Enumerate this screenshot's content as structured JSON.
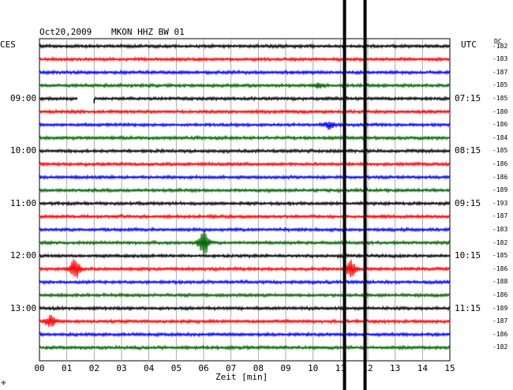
{
  "header": {
    "date": "Oct20,2009",
    "station": "MKON HHZ BW 01",
    "left_zone": "CES",
    "right_zone": "UTC",
    "dc_label": "DC"
  },
  "chart_data": {
    "type": "line",
    "title": "Oct20,2009   MKON HHZ BW 01",
    "xlabel": "Zeit [min]",
    "xlim": [
      0,
      15
    ],
    "x_ticks": [
      "00",
      "01",
      "02",
      "03",
      "04",
      "05",
      "06",
      "07",
      "08",
      "09",
      "10",
      "11",
      "12",
      "13",
      "14",
      "15"
    ],
    "left_time_labels": [
      {
        "trace": 4,
        "label": "09:00"
      },
      {
        "trace": 8,
        "label": "10:00"
      },
      {
        "trace": 12,
        "label": "11:00"
      },
      {
        "trace": 16,
        "label": "12:00"
      },
      {
        "trace": 20,
        "label": "13:00"
      }
    ],
    "right_time_labels": [
      {
        "trace": 0,
        "label": "UTC"
      },
      {
        "trace": 4,
        "label": "07:15"
      },
      {
        "trace": 8,
        "label": "08:15"
      },
      {
        "trace": 12,
        "label": "09:15"
      },
      {
        "trace": 16,
        "label": "10:15"
      },
      {
        "trace": 20,
        "label": "11:15"
      }
    ],
    "trace_colors": [
      "#000000",
      "#ff0000",
      "#0000ff",
      "#006400"
    ],
    "dc_offsets": [
      "-182",
      "-183",
      "-187",
      "-185",
      "-185",
      "-180",
      "-186",
      "-184",
      "-185",
      "-186",
      "-186",
      "-189",
      "-193",
      "-187",
      "-183",
      "-182",
      "-185",
      "-186",
      "-188",
      "-186",
      "-189",
      "-187",
      "-186",
      "-182"
    ],
    "events": [
      {
        "trace": 15,
        "minute": 6.0,
        "amplitude": 2.0
      },
      {
        "trace": 17,
        "minute": 1.3,
        "amplitude": 1.5
      },
      {
        "trace": 17,
        "minute": 11.4,
        "amplitude": 1.1
      },
      {
        "trace": 21,
        "minute": 0.4,
        "amplitude": 0.9
      },
      {
        "trace": 6,
        "minute": 10.6,
        "amplitude": 0.5
      },
      {
        "trace": 3,
        "minute": 10.2,
        "amplitude": 0.4
      }
    ],
    "gap": {
      "trace": 4,
      "start_minute": 1.4,
      "end_minute": 2.0
    },
    "vertical_markers_minute": [
      11.15,
      11.9
    ],
    "grid": true
  },
  "footer": {
    "corner_mark": "✠"
  }
}
